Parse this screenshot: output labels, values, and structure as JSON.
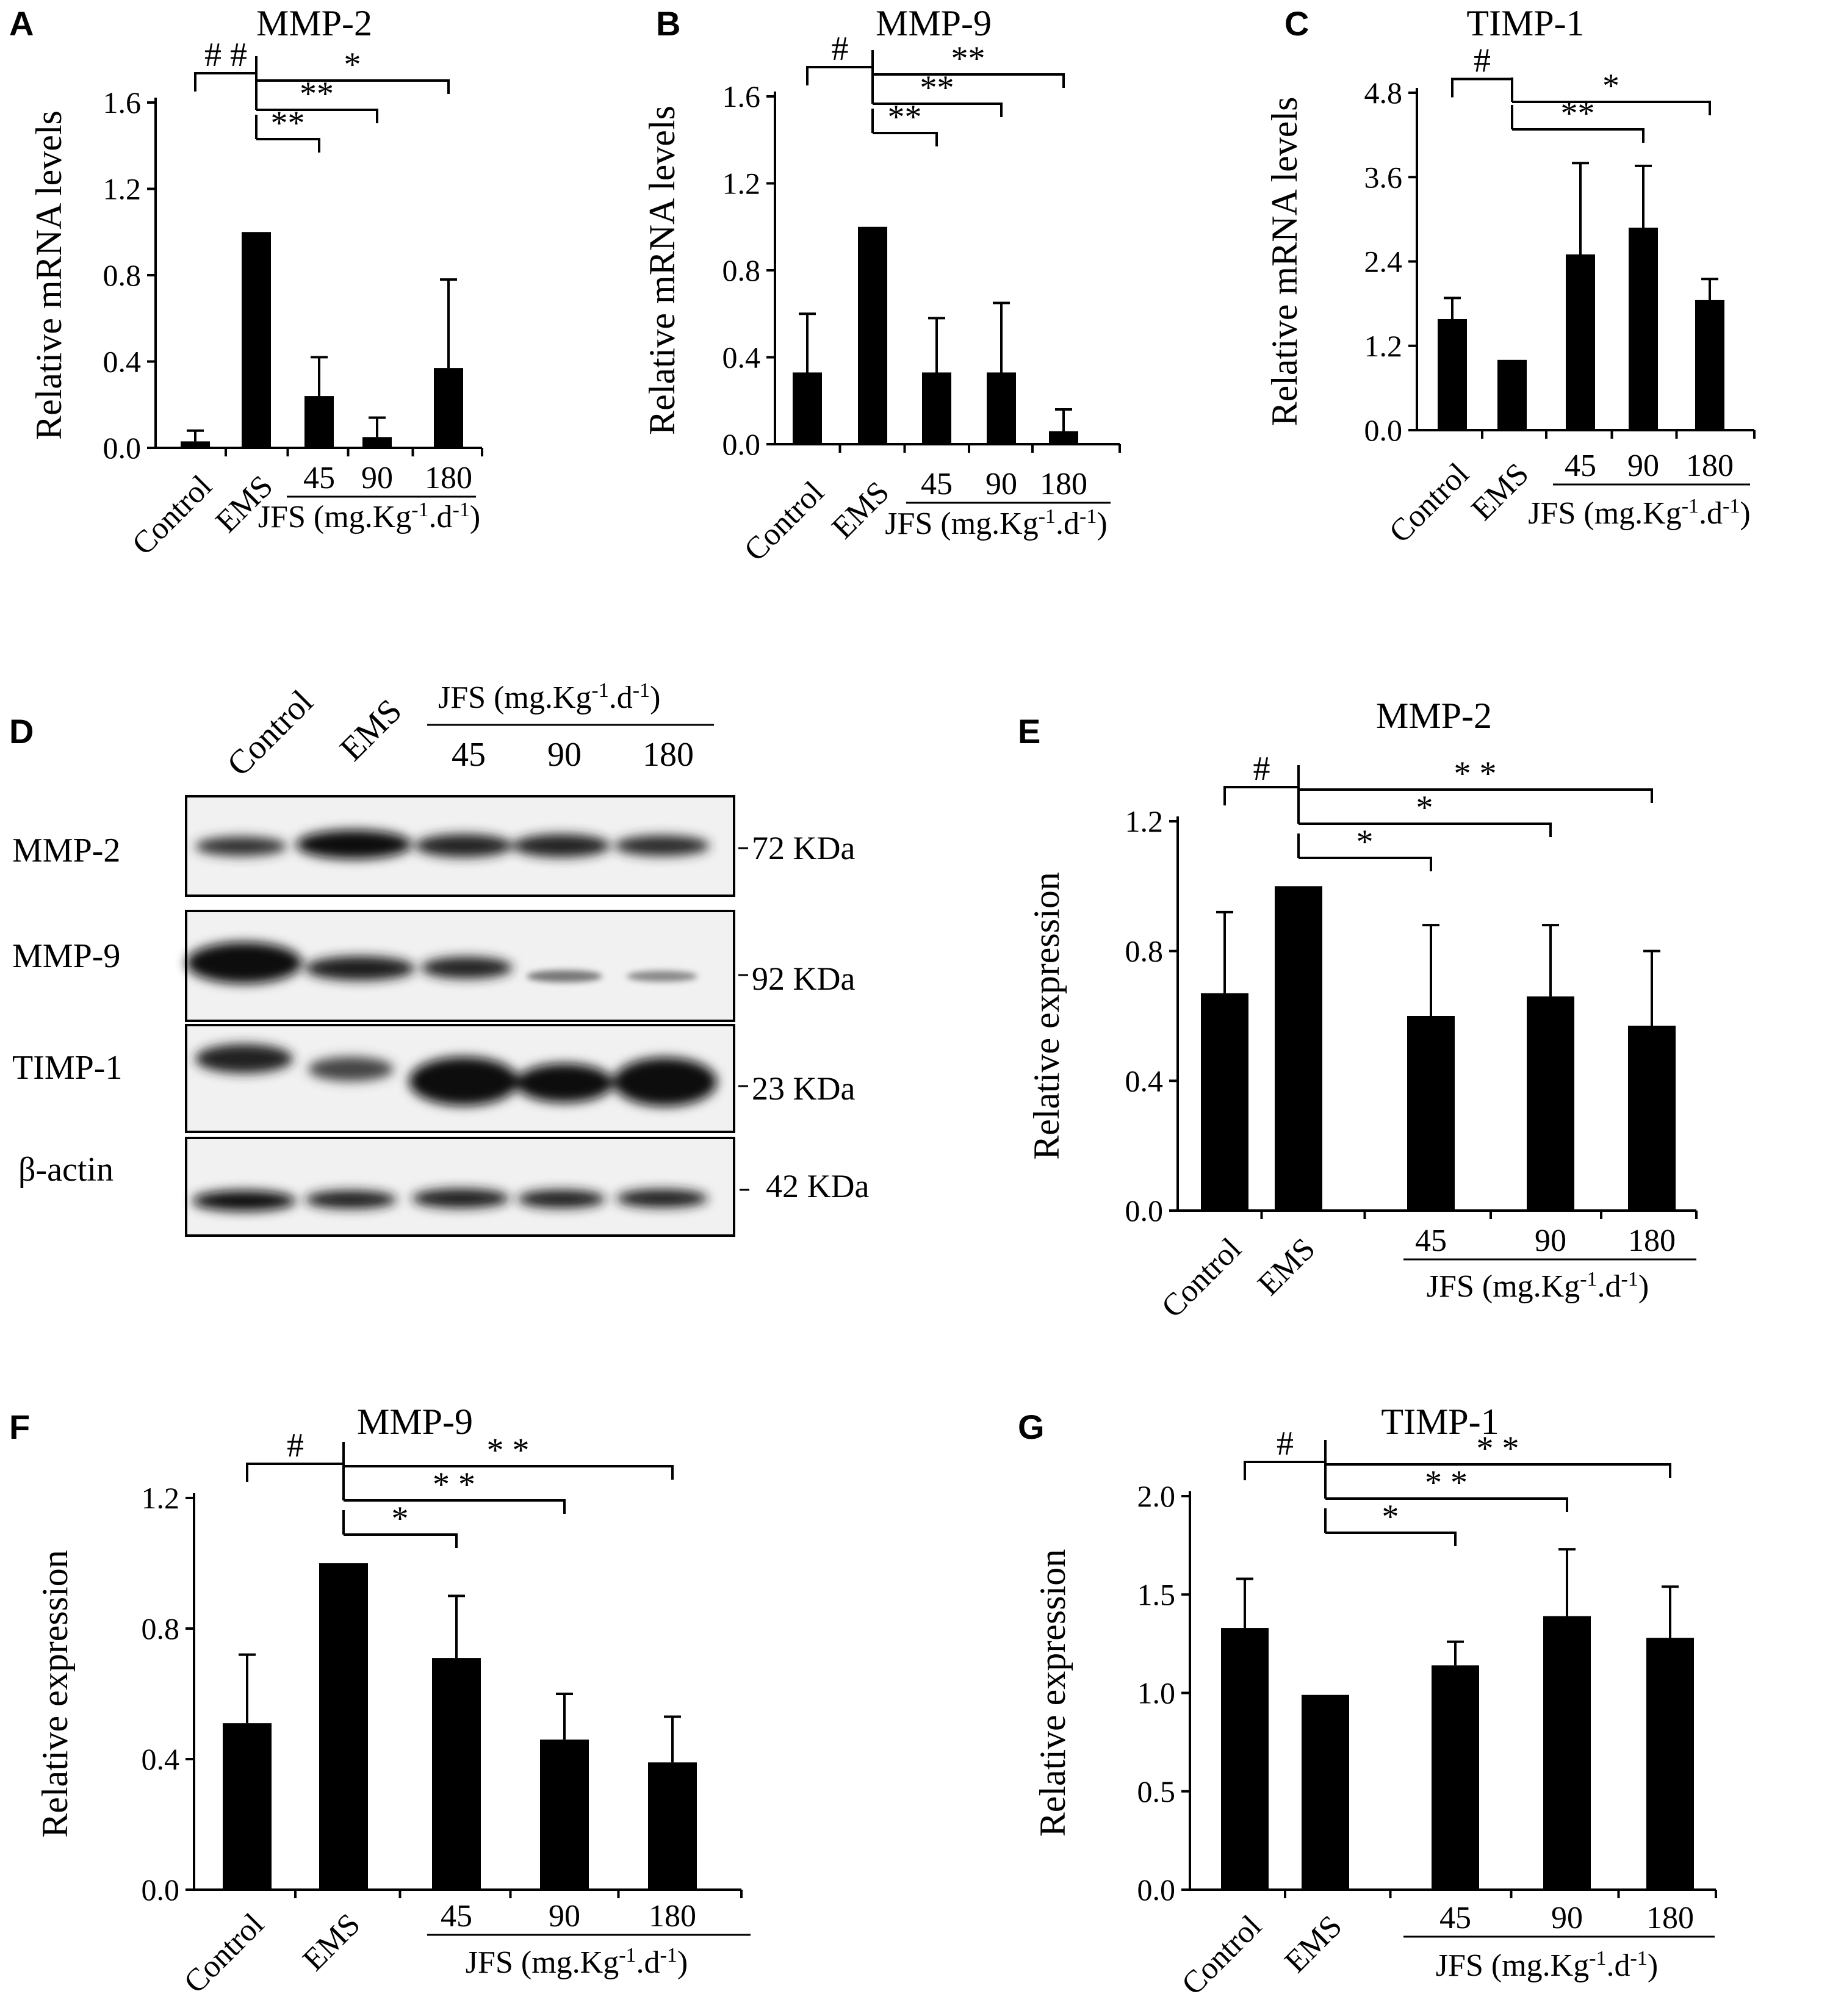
{
  "panels": {
    "A": {
      "letter": "A",
      "title": "MMP-2",
      "ylabel": "Relative mRNA levels"
    },
    "B": {
      "letter": "B",
      "title": "MMP-9",
      "ylabel": "Relative mRNA levels"
    },
    "C": {
      "letter": "C",
      "title": "TIMP-1",
      "ylabel": "Relative mRNA levels"
    },
    "D": {
      "letter": "D"
    },
    "E": {
      "letter": "E",
      "title": "MMP-2",
      "ylabel": "Relative expression"
    },
    "F": {
      "letter": "F",
      "title": "MMP-9",
      "ylabel": "Relative expression"
    },
    "G": {
      "letter": "G",
      "title": "TIMP-1",
      "ylabel": "Relative expression"
    }
  },
  "group_label": {
    "prefix": "JFS (mg.Kg",
    "exp1": "-1",
    "mid": ".d",
    "exp2": "-1",
    "suffix": ")"
  },
  "blot": {
    "lanes": [
      "Control",
      "EMS",
      "45",
      "90",
      "180"
    ],
    "rows": [
      {
        "label": "MMP-2",
        "size": "72 KDa"
      },
      {
        "label": "MMP-9",
        "size": "92 KDa"
      },
      {
        "label": "TIMP-1",
        "size": "23 KDa"
      },
      {
        "label": "β-actin",
        "size": "42 KDa"
      }
    ]
  },
  "chart_data": [
    {
      "panel": "A",
      "type": "bar",
      "title": "MMP-2",
      "ylabel": "Relative mRNA levels",
      "categories": [
        "Control",
        "EMS",
        "45",
        "90",
        "180"
      ],
      "values": [
        0.03,
        1.0,
        0.24,
        0.05,
        0.37
      ],
      "errors": [
        0.05,
        0.0,
        0.18,
        0.09,
        0.41
      ],
      "ylim": [
        0,
        1.6
      ],
      "yticks": [
        "0.0",
        "0.4",
        "0.8",
        "1.2",
        "1.6"
      ],
      "annotations": [
        {
          "from": 0,
          "to": 1,
          "text": "# #"
        },
        {
          "from": 1,
          "to": 2,
          "text": "**"
        },
        {
          "from": 1,
          "to": 3,
          "text": "**"
        },
        {
          "from": 1,
          "to": 4,
          "text": "*"
        }
      ]
    },
    {
      "panel": "B",
      "type": "bar",
      "title": "MMP-9",
      "ylabel": "Relative mRNA levels",
      "categories": [
        "Control",
        "EMS",
        "45",
        "90",
        "180"
      ],
      "values": [
        0.33,
        1.0,
        0.33,
        0.33,
        0.06
      ],
      "errors": [
        0.27,
        0.0,
        0.25,
        0.32,
        0.1
      ],
      "ylim": [
        0,
        1.6
      ],
      "yticks": [
        "0.0",
        "0.4",
        "0.8",
        "1.2",
        "1.6"
      ],
      "annotations": [
        {
          "from": 0,
          "to": 1,
          "text": "#"
        },
        {
          "from": 1,
          "to": 2,
          "text": "**"
        },
        {
          "from": 1,
          "to": 3,
          "text": "**"
        },
        {
          "from": 1,
          "to": 4,
          "text": "**"
        }
      ]
    },
    {
      "panel": "C",
      "type": "bar",
      "title": "TIMP-1",
      "ylabel": "Relative mRNA levels",
      "categories": [
        "Control",
        "EMS",
        "45",
        "90",
        "180"
      ],
      "values": [
        1.58,
        1.0,
        2.5,
        2.88,
        1.85
      ],
      "errors": [
        0.3,
        0.0,
        1.3,
        0.88,
        0.3
      ],
      "ylim": [
        0,
        4.8
      ],
      "yticks": [
        "0.0",
        "1.2",
        "2.4",
        "3.6",
        "4.8"
      ],
      "annotations": [
        {
          "from": 0,
          "to": 1,
          "text": "#"
        },
        {
          "from": 1,
          "to": 3,
          "text": "**"
        },
        {
          "from": 1,
          "to": 4,
          "text": "*"
        }
      ]
    },
    {
      "panel": "E",
      "type": "bar",
      "title": "MMP-2",
      "ylabel": "Relative expression",
      "categories": [
        "Control",
        "EMS",
        "45",
        "90",
        "180"
      ],
      "values": [
        0.67,
        1.0,
        0.6,
        0.66,
        0.57
      ],
      "errors": [
        0.25,
        0.0,
        0.28,
        0.22,
        0.23
      ],
      "ylim": [
        0,
        1.2
      ],
      "yticks": [
        "0.0",
        "0.4",
        "0.8",
        "1.2"
      ],
      "annotations": [
        {
          "from": 0,
          "to": 1,
          "text": "#"
        },
        {
          "from": 1,
          "to": 2,
          "text": "*"
        },
        {
          "from": 1,
          "to": 3,
          "text": "*"
        },
        {
          "from": 1,
          "to": 4,
          "text": "* *"
        }
      ]
    },
    {
      "panel": "F",
      "type": "bar",
      "title": "MMP-9",
      "ylabel": "Relative expression",
      "categories": [
        "Control",
        "EMS",
        "45",
        "90",
        "180"
      ],
      "values": [
        0.51,
        1.0,
        0.71,
        0.46,
        0.39
      ],
      "errors": [
        0.21,
        0.0,
        0.19,
        0.14,
        0.14
      ],
      "ylim": [
        0,
        1.2
      ],
      "yticks": [
        "0.0",
        "0.4",
        "0.8",
        "1.2"
      ],
      "annotations": [
        {
          "from": 0,
          "to": 1,
          "text": "#"
        },
        {
          "from": 1,
          "to": 2,
          "text": "*"
        },
        {
          "from": 1,
          "to": 3,
          "text": "* *"
        },
        {
          "from": 1,
          "to": 4,
          "text": "* *"
        }
      ]
    },
    {
      "panel": "G",
      "type": "bar",
      "title": "TIMP-1",
      "ylabel": "Relative expression",
      "categories": [
        "Control",
        "EMS",
        "45",
        "90",
        "180"
      ],
      "values": [
        1.33,
        0.99,
        1.14,
        1.39,
        1.28
      ],
      "errors": [
        0.25,
        0.0,
        0.12,
        0.34,
        0.26
      ],
      "ylim": [
        0,
        2.0
      ],
      "yticks": [
        "0.0",
        "0.5",
        "1.0",
        "1.5",
        "2.0"
      ],
      "annotations": [
        {
          "from": 0,
          "to": 1,
          "text": "#"
        },
        {
          "from": 1,
          "to": 2,
          "text": "*"
        },
        {
          "from": 1,
          "to": 3,
          "text": "* *"
        },
        {
          "from": 1,
          "to": 4,
          "text": "* *"
        }
      ]
    }
  ]
}
